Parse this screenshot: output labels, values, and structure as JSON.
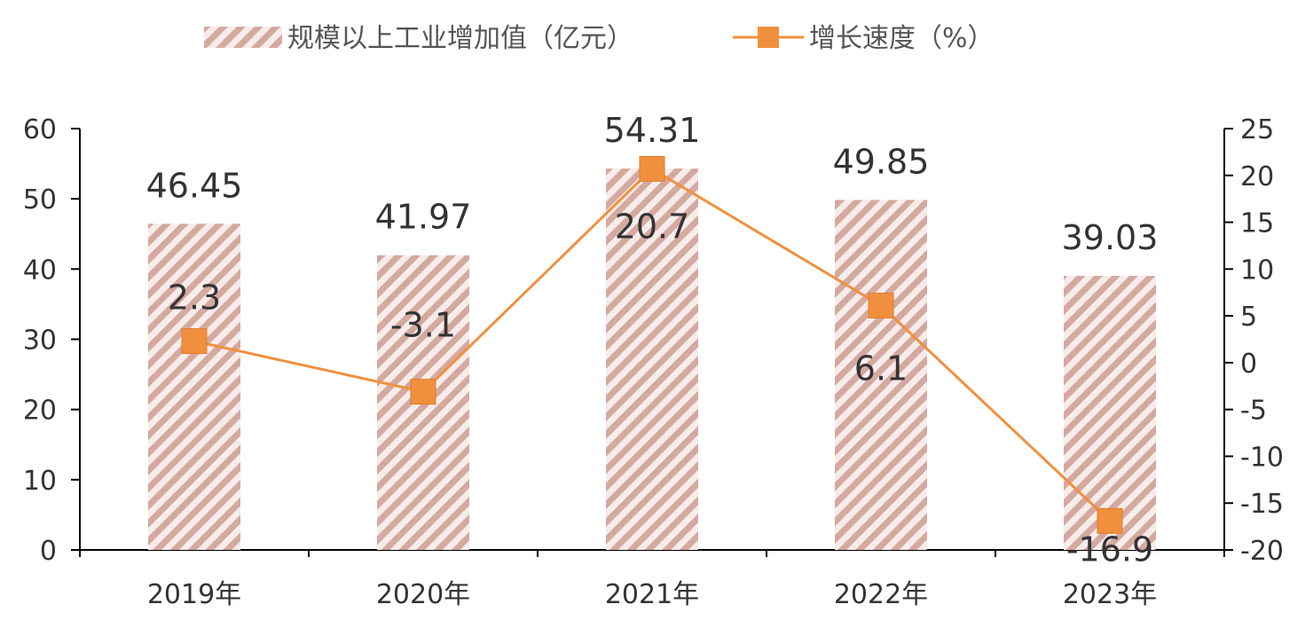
{
  "chart_data": {
    "type": "bar",
    "categories": [
      "2019年",
      "2020年",
      "2021年",
      "2022年",
      "2023年"
    ],
    "series": [
      {
        "name": "规模以上工业增加值（亿元）",
        "type": "bar",
        "axis": "left",
        "values": [
          46.45,
          41.97,
          54.31,
          49.85,
          39.03
        ],
        "labels": [
          "46.45",
          "41.97",
          "54.31",
          "49.85",
          "39.03"
        ],
        "color": "#d4a9a0"
      },
      {
        "name": "增长速度（%）",
        "type": "line",
        "axis": "right",
        "values": [
          2.3,
          -3.1,
          20.7,
          6.1,
          -16.9
        ],
        "labels": [
          "2.3",
          "-3.1",
          "20.7",
          "6.1",
          "-16.9"
        ],
        "color": "#f0903e"
      }
    ],
    "ylim_left": [
      0,
      60
    ],
    "yticks_left": [
      "0",
      "10",
      "20",
      "30",
      "40",
      "50",
      "60"
    ],
    "ylim_right": [
      -20,
      25
    ],
    "yticks_right": [
      "-20",
      "-15",
      "-10",
      "-5",
      "0",
      "5",
      "10",
      "15",
      "20",
      "25"
    ],
    "title": "",
    "xlabel": "",
    "ylabel": "",
    "legend_position": "top",
    "grid": false
  }
}
